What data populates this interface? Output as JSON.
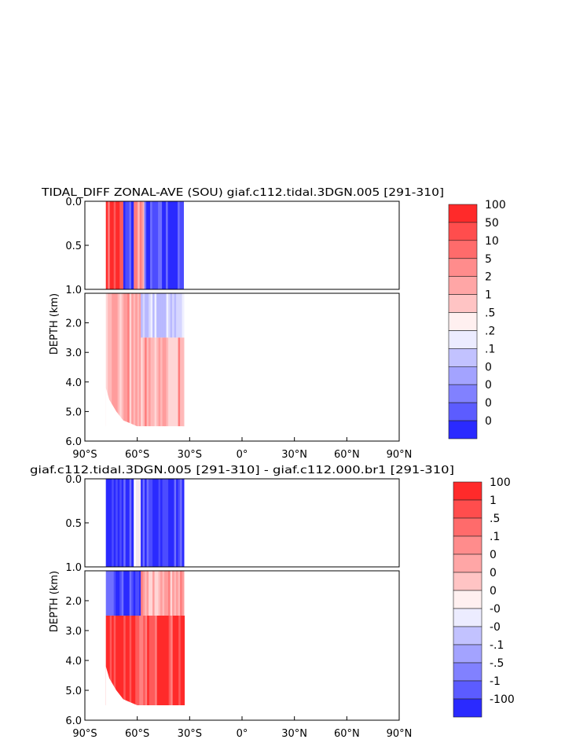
{
  "chart_data": [
    {
      "type": "heatmap",
      "title": "TIDAL_DIFF ZONAL-AVE (SOU) giaf.c112.tidal.3DGN.005 [291-310]",
      "ylabel": "DEPTH (km)",
      "xlabel": "",
      "x_ticks": [
        "90°S",
        "60°S",
        "30°S",
        "0°",
        "30°N",
        "60°N",
        "90°N"
      ],
      "y_ticks_upper": [
        "0.0",
        "0.5",
        "1.0"
      ],
      "y_ticks_lower": [
        "2.0",
        "3.0",
        "4.0",
        "5.0",
        "6.0"
      ],
      "xlim": [
        -90,
        90
      ],
      "ylim": [
        6.0,
        0.0
      ],
      "y_break_km": 1.0,
      "colorbar_labels": [
        "100",
        "50",
        "10",
        "5",
        "2",
        "1",
        ".5",
        ".2",
        ".1",
        "0",
        "0",
        "0",
        "0"
      ],
      "colors": [
        "#ff2a2a",
        "#ff4d4d",
        "#ff6b6b",
        "#ff8c8c",
        "#ffa6a6",
        "#ffc4c4",
        "#fff0f0",
        "#ececff",
        "#c2c2ff",
        "#a3a3ff",
        "#8181ff",
        "#5c5cff",
        "#2a2aff"
      ],
      "data_extent_lat": [
        -78,
        -34
      ],
      "upper_pattern": [
        {
          "lat": [
            -78,
            -68
          ],
          "depth": [
            0.0,
            1.0
          ],
          "level": "red",
          "note_level": 5
        },
        {
          "lat": [
            -68,
            -62
          ],
          "depth": [
            0.0,
            1.0
          ],
          "level": "blue",
          "note_level": 1
        },
        {
          "lat": [
            -62,
            -56
          ],
          "depth": [
            0.0,
            1.0
          ],
          "level": "light-red",
          "note_level": 4
        },
        {
          "lat": [
            -56,
            -34
          ],
          "depth": [
            0.0,
            1.0
          ],
          "level": "blue",
          "note_level": 1
        }
      ],
      "lower_pattern": [
        {
          "lat": [
            -78,
            -58
          ],
          "depth": [
            1.0,
            5.5
          ],
          "level": "light-red",
          "note_level": 5
        },
        {
          "lat": [
            -58,
            -34
          ],
          "depth": [
            1.0,
            2.5
          ],
          "level": "light-blue",
          "note_level": 8
        },
        {
          "lat": [
            -58,
            -34
          ],
          "depth": [
            2.5,
            5.5
          ],
          "level": "light-red",
          "note_level": 5
        }
      ]
    },
    {
      "type": "heatmap",
      "title": "giaf.c112.tidal.3DGN.005 [291-310] - giaf.c112.000.br1 [291-310]",
      "ylabel": "DEPTH (km)",
      "xlabel": "",
      "x_ticks": [
        "90°S",
        "60°S",
        "30°S",
        "0°",
        "30°N",
        "60°N",
        "90°N"
      ],
      "y_ticks_upper": [
        "0.0",
        "0.5",
        "1.0"
      ],
      "y_ticks_lower": [
        "2.0",
        "3.0",
        "4.0",
        "5.0",
        "6.0"
      ],
      "xlim": [
        -90,
        90
      ],
      "ylim": [
        6.0,
        0.0
      ],
      "y_break_km": 1.0,
      "colorbar_labels": [
        "100",
        "1",
        ".5",
        ".1",
        "0",
        "0",
        "0",
        "-0",
        "-0",
        "-.1",
        "-.5",
        "-1",
        "-100"
      ],
      "colors": [
        "#ff2a2a",
        "#ff4d4d",
        "#ff6b6b",
        "#ff8c8c",
        "#ffa6a6",
        "#ffc4c4",
        "#fff0f0",
        "#ececff",
        "#c2c2ff",
        "#a3a3ff",
        "#8181ff",
        "#5c5cff",
        "#2a2aff"
      ],
      "data_extent_lat": [
        -78,
        -34
      ],
      "upper_pattern": [
        {
          "lat": [
            -78,
            -62
          ],
          "depth": [
            0.0,
            1.0
          ],
          "level": "blue"
        },
        {
          "lat": [
            -62,
            -58
          ],
          "depth": [
            0.0,
            1.0
          ],
          "level": "white"
        },
        {
          "lat": [
            -58,
            -34
          ],
          "depth": [
            0.0,
            1.0
          ],
          "level": "blue"
        }
      ],
      "lower_pattern": [
        {
          "lat": [
            -78,
            -58
          ],
          "depth": [
            1.0,
            2.5
          ],
          "level": "blue"
        },
        {
          "lat": [
            -58,
            -34
          ],
          "depth": [
            1.0,
            2.5
          ],
          "level": "light-red"
        },
        {
          "lat": [
            -78,
            -34
          ],
          "depth": [
            2.5,
            5.5
          ],
          "level": "red"
        }
      ]
    }
  ]
}
